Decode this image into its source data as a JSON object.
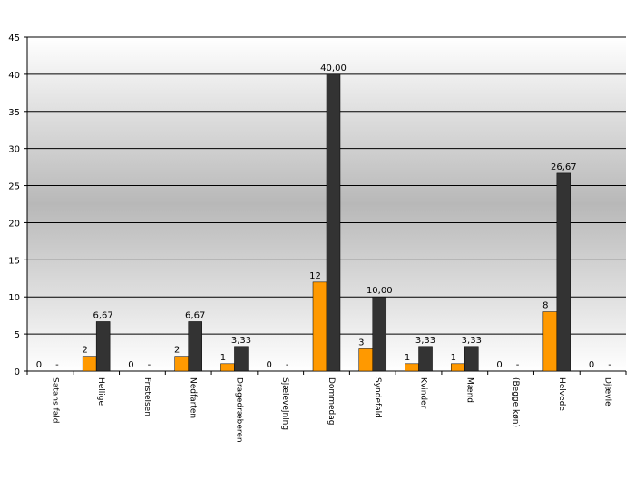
{
  "chart_data": {
    "type": "bar",
    "categories": [
      "Satans fald",
      "Hellige",
      "Fristelsen",
      "Nedfarten",
      "Dragedræberen",
      "Sjælevejning",
      "Dommedag",
      "Syndefald",
      "Kvinder",
      "Mænd",
      "(Begge køn)",
      "Helvede",
      "Djævle"
    ],
    "series": [
      {
        "color": "#ff9900",
        "values": [
          0,
          2,
          0,
          2,
          1,
          0,
          12,
          3,
          1,
          1,
          0,
          8,
          0
        ]
      },
      {
        "color": "#333333",
        "values": [
          0,
          6.67,
          0,
          6.67,
          3.33,
          0,
          40,
          10,
          3.33,
          3.33,
          0,
          26.67,
          0
        ],
        "value_labels": [
          "-",
          "6,67",
          "-",
          "6,67",
          "3,33",
          "-",
          "40,00",
          "10,00",
          "3,33",
          "3,33",
          "-",
          "26,67",
          "-"
        ]
      }
    ],
    "ylim": [
      0,
      45
    ],
    "yticks": [
      0,
      5,
      10,
      15,
      20,
      25,
      30,
      35,
      40,
      45
    ],
    "grid": true
  }
}
